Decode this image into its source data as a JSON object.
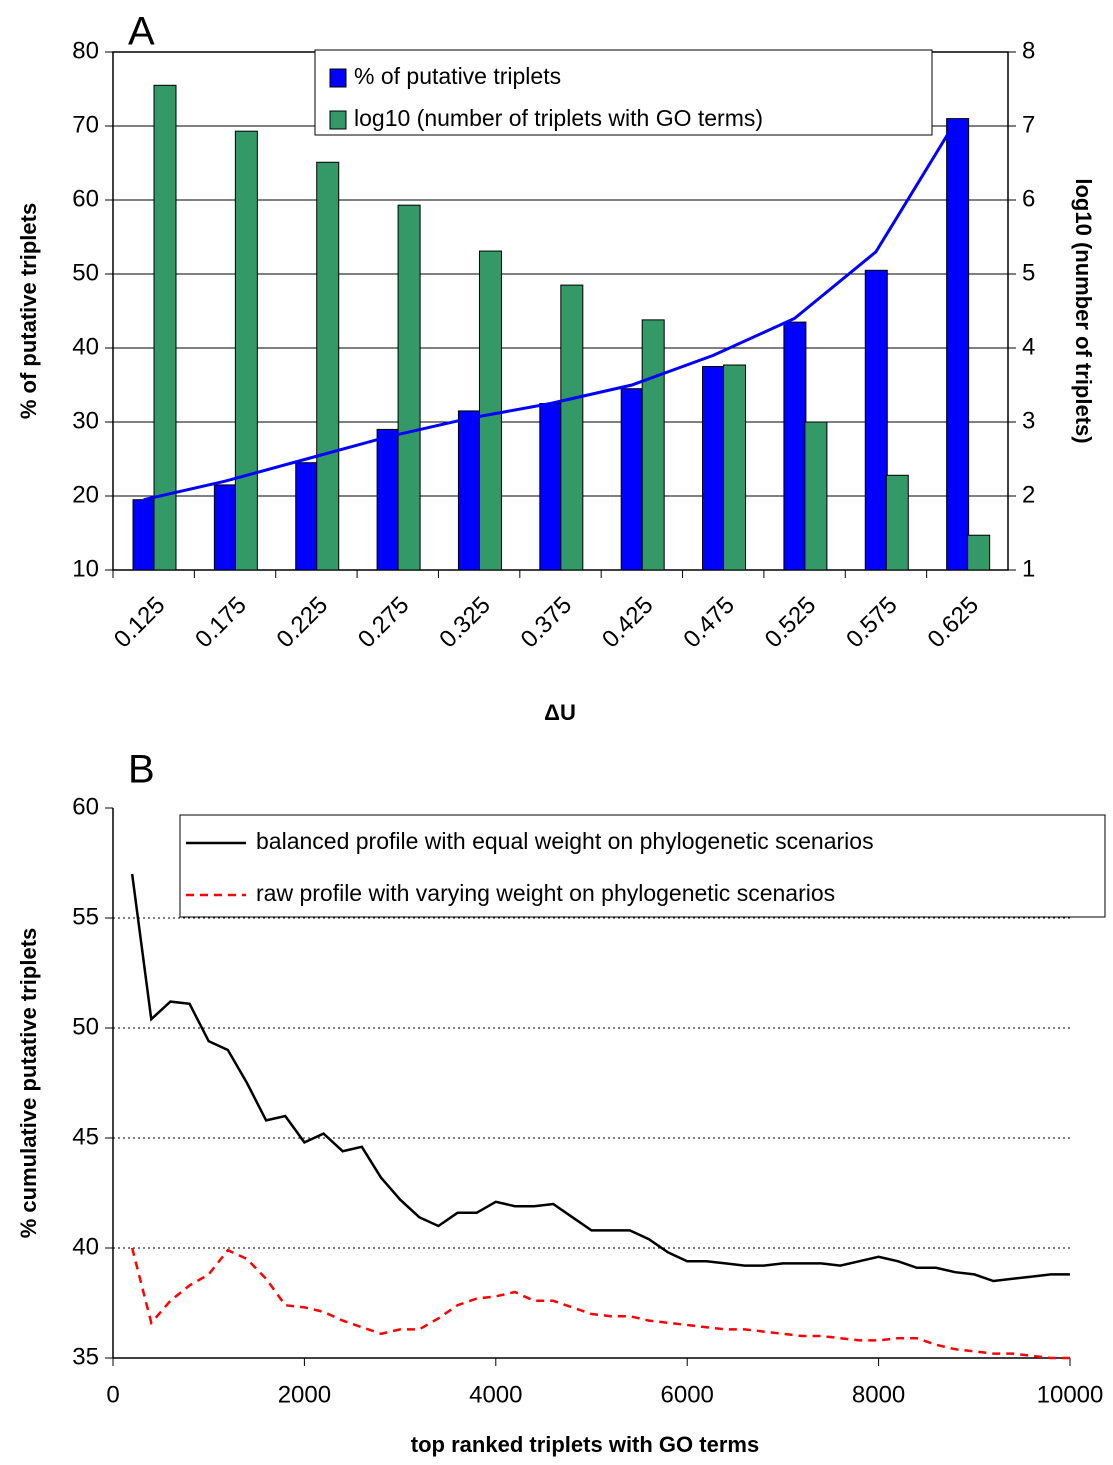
{
  "chart_data": [
    {
      "type": "bar",
      "panel": "A",
      "categories": [
        "0.125",
        "0.175",
        "0.225",
        "0.275",
        "0.325",
        "0.375",
        "0.425",
        "0.475",
        "0.525",
        "0.575",
        "0.625"
      ],
      "series": [
        {
          "name": "% of putative triplets",
          "color": "#0000ff",
          "values": [
            19.5,
            21.5,
            24.5,
            29,
            31.5,
            32.5,
            34.5,
            37.5,
            43.5,
            50.5,
            71
          ]
        },
        {
          "name": "log10 (number of triplets with GO terms)",
          "color": "#339966",
          "axis": "y2",
          "values": [
            7.55,
            6.93,
            6.51,
            5.93,
            5.31,
            4.85,
            4.38,
            3.77,
            3.0,
            2.28,
            1.47
          ]
        }
      ],
      "trendline": {
        "color": "#0000ff",
        "values": [
          19.5,
          22,
          25,
          28,
          30.5,
          32.5,
          35,
          39,
          44,
          53,
          71
        ]
      },
      "xlabel": "ΔU",
      "ylabel": "% of putative triplets",
      "y2label": "log10 (number of triplets)",
      "ylim": [
        10,
        80
      ],
      "yticks": [
        10,
        20,
        30,
        40,
        50,
        60,
        70,
        80
      ],
      "y2lim": [
        1,
        8
      ],
      "y2ticks": [
        1,
        2,
        3,
        4,
        5,
        6,
        7,
        8
      ],
      "grid": true
    },
    {
      "type": "line",
      "panel": "B",
      "x": [
        200,
        400,
        600,
        800,
        1000,
        1200,
        1400,
        1600,
        1800,
        2000,
        2200,
        2400,
        2600,
        2800,
        3000,
        3200,
        3400,
        3600,
        3800,
        4000,
        4200,
        4400,
        4600,
        4800,
        5000,
        5200,
        5400,
        5600,
        5800,
        6000,
        6200,
        6400,
        6600,
        6800,
        7000,
        7200,
        7400,
        7600,
        7800,
        8000,
        8200,
        8400,
        8600,
        8800,
        9000,
        9200,
        9400,
        9600,
        9800,
        10000
      ],
      "series": [
        {
          "name": "balanced profile with equal weight on phylogenetic scenarios",
          "color": "#000000",
          "linestyle": "solid",
          "values": [
            57,
            50.4,
            51.2,
            51.1,
            49.4,
            49.0,
            47.5,
            45.8,
            46.0,
            44.8,
            45.2,
            44.4,
            44.6,
            43.2,
            42.2,
            41.4,
            41.0,
            41.6,
            41.6,
            42.1,
            41.9,
            41.9,
            42.0,
            41.4,
            40.8,
            40.8,
            40.8,
            40.4,
            39.8,
            39.4,
            39.4,
            39.3,
            39.2,
            39.2,
            39.3,
            39.3,
            39.3,
            39.2,
            39.4,
            39.6,
            39.4,
            39.1,
            39.1,
            38.9,
            38.8,
            38.5,
            38.6,
            38.7,
            38.8,
            38.8
          ]
        },
        {
          "name": "raw profile with varying weight on phylogenetic scenarios",
          "color": "#ff0000",
          "linestyle": "dashed",
          "values": [
            40,
            36.6,
            37.6,
            38.3,
            38.8,
            39.9,
            39.5,
            38.6,
            37.4,
            37.3,
            37.1,
            36.7,
            36.4,
            36.1,
            36.3,
            36.3,
            36.8,
            37.4,
            37.7,
            37.8,
            38.0,
            37.6,
            37.6,
            37.3,
            37.0,
            36.9,
            36.9,
            36.7,
            36.6,
            36.5,
            36.4,
            36.3,
            36.3,
            36.2,
            36.1,
            36.0,
            36.0,
            35.9,
            35.8,
            35.8,
            35.9,
            35.9,
            35.6,
            35.4,
            35.3,
            35.2,
            35.2,
            35.1,
            35.0,
            35.0
          ]
        }
      ],
      "xlabel": "top ranked triplets with GO terms",
      "ylabel": "% cumulative putative triplets",
      "xlim": [
        0,
        10000
      ],
      "xticks": [
        0,
        2000,
        4000,
        6000,
        8000,
        10000
      ],
      "ylim": [
        35,
        60
      ],
      "yticks": [
        35,
        40,
        45,
        50,
        55,
        60
      ],
      "grid": "dotted"
    }
  ]
}
